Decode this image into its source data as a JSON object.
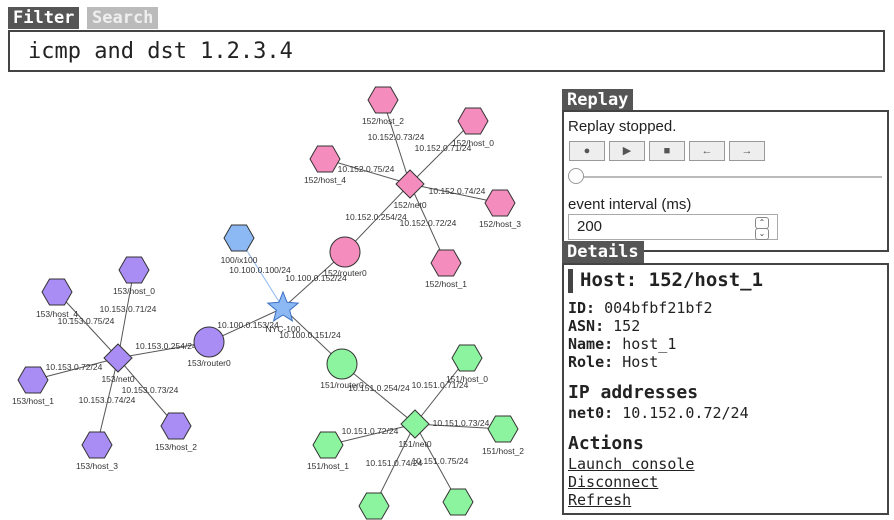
{
  "tabs": {
    "filter": "Filter",
    "search": "Search"
  },
  "filter": {
    "query": "icmp and dst 1.2.3.4"
  },
  "replay": {
    "title": "Replay",
    "status": "Replay stopped.",
    "controls": {
      "record": "●",
      "play": "▶",
      "stop": "■",
      "back": "←",
      "forward": "→"
    },
    "interval_label": "event interval (ms)",
    "interval_value": "200",
    "position": 0
  },
  "details": {
    "title": "Details",
    "host_title": "Host: 152/host_1",
    "fields": [
      {
        "label": "ID:",
        "value": "004bfbf21bf2"
      },
      {
        "label": "ASN:",
        "value": "152"
      },
      {
        "label": "Name:",
        "value": "host_1"
      },
      {
        "label": "Role:",
        "value": "Host"
      }
    ],
    "ip_section": "IP addresses",
    "ips": [
      {
        "label": "net0:",
        "value": "10.152.0.72/24"
      }
    ],
    "actions_section": "Actions",
    "actions": [
      "Launch console",
      "Disconnect",
      "Refresh"
    ]
  },
  "colors": {
    "as152": "#f48cbd",
    "as153": "#a98cf4",
    "as151": "#8cf49e",
    "ix": "#8cb8f4",
    "edge": "#555555",
    "edge_ix": "#8cb8f4"
  },
  "graph": {
    "nodes": [
      {
        "id": "n-152-net0",
        "label": "152/net0",
        "shape": "diamond",
        "group": "as152"
      },
      {
        "id": "n-152-host0",
        "label": "152/host_0",
        "shape": "hexagon",
        "group": "as152"
      },
      {
        "id": "n-152-host1",
        "label": "152/host_1",
        "shape": "hexagon",
        "group": "as152"
      },
      {
        "id": "n-152-host2",
        "label": "152/host_2",
        "shape": "hexagon",
        "group": "as152"
      },
      {
        "id": "n-152-host3",
        "label": "152/host_3",
        "shape": "hexagon",
        "group": "as152"
      },
      {
        "id": "n-152-host4",
        "label": "152/host_4",
        "shape": "hexagon",
        "group": "as152"
      },
      {
        "id": "n-152-router0",
        "label": "152/router0",
        "shape": "circle",
        "group": "as152"
      },
      {
        "id": "n-nyc",
        "label": "NYC-100",
        "shape": "star",
        "group": "ix"
      },
      {
        "id": "n-ix100",
        "label": "100/ix100",
        "shape": "hexagon",
        "group": "ix"
      },
      {
        "id": "n-153-router0",
        "label": "153/router0",
        "shape": "circle",
        "group": "as153"
      },
      {
        "id": "n-153-net0",
        "label": "153/net0",
        "shape": "diamond",
        "group": "as153"
      },
      {
        "id": "n-153-host0",
        "label": "153/host_0",
        "shape": "hexagon",
        "group": "as153"
      },
      {
        "id": "n-153-host1",
        "label": "153/host_1",
        "shape": "hexagon",
        "group": "as153"
      },
      {
        "id": "n-153-host2",
        "label": "153/host_2",
        "shape": "hexagon",
        "group": "as153"
      },
      {
        "id": "n-153-host3",
        "label": "153/host_3",
        "shape": "hexagon",
        "group": "as153"
      },
      {
        "id": "n-153-host4",
        "label": "153/host_4",
        "shape": "hexagon",
        "group": "as153"
      },
      {
        "id": "n-151-router0",
        "label": "151/router0",
        "shape": "circle",
        "group": "as151"
      },
      {
        "id": "n-151-net0",
        "label": "151/net0",
        "shape": "diamond",
        "group": "as151"
      },
      {
        "id": "n-151-host0",
        "label": "151/host_0",
        "shape": "hexagon",
        "group": "as151"
      },
      {
        "id": "n-151-host1",
        "label": "151/host_1",
        "shape": "hexagon",
        "group": "as151"
      },
      {
        "id": "n-151-host2",
        "label": "151/host_2",
        "shape": "hexagon",
        "group": "as151"
      },
      {
        "id": "n-151-host3",
        "label": "",
        "shape": "hexagon",
        "group": "as151"
      },
      {
        "id": "n-151-host4",
        "label": "",
        "shape": "hexagon",
        "group": "as151"
      }
    ],
    "edges": [
      {
        "from": "n-152-net0",
        "to": "n-152-host2",
        "label": "10.152.0.73/24"
      },
      {
        "from": "n-152-net0",
        "to": "n-152-host0",
        "label": "10.152.0.71/24"
      },
      {
        "from": "n-152-net0",
        "to": "n-152-host4",
        "label": "10.152.0.75/24"
      },
      {
        "from": "n-152-net0",
        "to": "n-152-host3",
        "label": "10.152.0.74/24"
      },
      {
        "from": "n-152-net0",
        "to": "n-152-host1",
        "label": "10.152.0.72/24"
      },
      {
        "from": "n-152-net0",
        "to": "n-152-router0",
        "label": "10.152.0.254/24"
      },
      {
        "from": "n-nyc",
        "to": "n-152-router0",
        "label": "10.100.0.152/24"
      },
      {
        "from": "n-nyc",
        "to": "n-ix100",
        "label": "10.100.0.100/24",
        "ix": true
      },
      {
        "from": "n-nyc",
        "to": "n-153-router0",
        "label": "10.100.0.153/24"
      },
      {
        "from": "n-nyc",
        "to": "n-151-router0",
        "label": "10.100.0.151/24"
      },
      {
        "from": "n-153-router0",
        "to": "n-153-net0",
        "label": "10.153.0.254/24"
      },
      {
        "from": "n-153-net0",
        "to": "n-153-host0",
        "label": "10.153.0.71/24"
      },
      {
        "from": "n-153-net0",
        "to": "n-153-host4",
        "label": "10.153.0.75/24"
      },
      {
        "from": "n-153-net0",
        "to": "n-153-host1",
        "label": "10.153.0.72/24"
      },
      {
        "from": "n-153-net0",
        "to": "n-153-host2",
        "label": "10.153.0.73/24"
      },
      {
        "from": "n-153-net0",
        "to": "n-153-host3",
        "label": "10.153.0.74/24"
      },
      {
        "from": "n-151-router0",
        "to": "n-151-net0",
        "label": "10.151.0.254/24"
      },
      {
        "from": "n-151-net0",
        "to": "n-151-host0",
        "label": "10.151.0.71/24"
      },
      {
        "from": "n-151-net0",
        "to": "n-151-host2",
        "label": "10.151.0.73/24"
      },
      {
        "from": "n-151-net0",
        "to": "n-151-host1",
        "label": "10.151.0.72/24"
      },
      {
        "from": "n-151-net0",
        "to": "n-151-host3",
        "label": "10.151.0.74/24"
      },
      {
        "from": "n-151-net0",
        "to": "n-151-host4",
        "label": "10.151.0.75/24"
      }
    ]
  }
}
